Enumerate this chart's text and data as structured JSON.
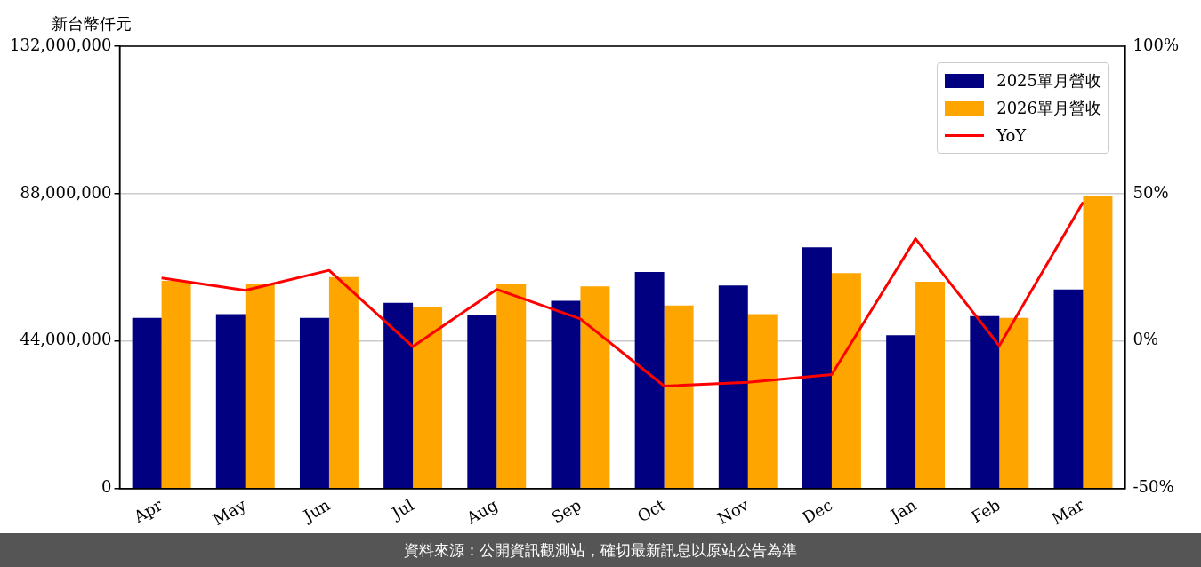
{
  "chart_data": {
    "type": "bar",
    "ylabel": "新台幣仟元",
    "categories": [
      "Apr",
      "May",
      "Jun",
      "Jul",
      "Aug",
      "Sep",
      "Oct",
      "Nov",
      "Dec",
      "Jan",
      "Feb",
      "Mar"
    ],
    "series": [
      {
        "name": "2025單月營收",
        "color": "#000080",
        "values": [
          50900000,
          52000000,
          50900000,
          55400000,
          51700000,
          56000000,
          64600000,
          60600000,
          72000000,
          45700000,
          51400000,
          59400000
        ]
      },
      {
        "name": "2026單月營收",
        "color": "#ffa500",
        "values": [
          62000000,
          61100000,
          63100000,
          54300000,
          61100000,
          60300000,
          54600000,
          52000000,
          64300000,
          61700000,
          50900000,
          87400000
        ]
      },
      {
        "name": "YoY",
        "type": "line",
        "axis": "y2",
        "color": "#ff0000",
        "values": [
          21.4,
          17.2,
          24.0,
          -1.9,
          17.5,
          7.5,
          -15.3,
          -14.0,
          -11.4,
          34.7,
          -1.6,
          47.1
        ]
      }
    ],
    "ylim": [
      0,
      132000000
    ],
    "yticks": [
      {
        "value": 0,
        "label": "0"
      },
      {
        "value": 44000000,
        "label": "44,000,000"
      },
      {
        "value": 88000000,
        "label": "88,000,000"
      },
      {
        "value": 132000000,
        "label": "132,000,000"
      }
    ],
    "y2lim": [
      -50,
      100
    ],
    "y2ticks": [
      {
        "value": -50,
        "label": "-50%"
      },
      {
        "value": 0,
        "label": "0%"
      },
      {
        "value": 50,
        "label": "50%"
      },
      {
        "value": 100,
        "label": "100%"
      }
    ],
    "grid": "y",
    "legend": "top right",
    "marker": "none",
    "line_style": "solid",
    "annotations": [
      "資料來源：公開資訊觀測站，確切最新訊息以原站公告為準"
    ]
  }
}
